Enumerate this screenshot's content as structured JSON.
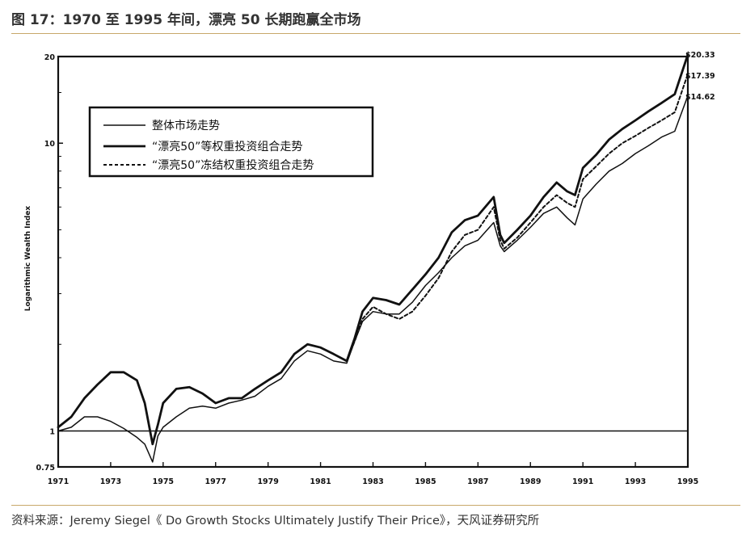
{
  "title": "图 17：1970 至 1995 年间，漂亮 50 长期跑赢全市场",
  "source": "资料来源：Jeremy Siegel《 Do Growth Stocks Ultimately Justify Their Price》，天风证券研究所",
  "colors": {
    "rule": "#c8a86a",
    "line": "#111111",
    "text": "#333333"
  },
  "chart_data": {
    "type": "line",
    "yscale": "log",
    "ylabel": "Logarithmic Wealth Index",
    "ylim": [
      0.75,
      20
    ],
    "xlim": [
      1971,
      1995
    ],
    "yticks": [
      {
        "v": 20,
        "label": "20"
      },
      {
        "v": 10,
        "label": "10"
      },
      {
        "v": 1,
        "label": "1"
      },
      {
        "v": 0.75,
        "label": "0.75"
      }
    ],
    "xticks": [
      "1971",
      "1973",
      "1975",
      "1977",
      "1979",
      "1981",
      "1983",
      "1985",
      "1987",
      "1989",
      "1991",
      "1993",
      "1995"
    ],
    "reference_line": 1,
    "end_labels": [
      "$20.33",
      "$17.39",
      "$14.62"
    ],
    "legend": [
      {
        "label": "整体市场走势",
        "style": "thin"
      },
      {
        "label": "“漂亮50”等权重投资组合走势",
        "style": "thick"
      },
      {
        "label": "“漂亮50”冻结权重投资组合走势",
        "style": "dashed"
      }
    ],
    "series": [
      {
        "name": "整体市场走势",
        "style": "thin",
        "x": [
          1971,
          1971.5,
          1972,
          1972.5,
          1973,
          1973.5,
          1974,
          1974.3,
          1974.6,
          1974.8,
          1975,
          1975.5,
          1976,
          1976.5,
          1977,
          1977.5,
          1978,
          1978.5,
          1979,
          1979.5,
          1980,
          1980.5,
          1981,
          1981.5,
          1982,
          1982.3,
          1982.6,
          1983,
          1983.5,
          1984,
          1984.5,
          1985,
          1985.5,
          1986,
          1986.5,
          1987,
          1987.6,
          1987.85,
          1988,
          1988.5,
          1989,
          1989.5,
          1990,
          1990.4,
          1990.7,
          1991,
          1991.5,
          1992,
          1992.5,
          1993,
          1993.5,
          1994,
          1994.5,
          1995
        ],
        "values": [
          1.0,
          1.03,
          1.12,
          1.12,
          1.08,
          1.02,
          0.95,
          0.9,
          0.78,
          0.96,
          1.03,
          1.12,
          1.2,
          1.22,
          1.2,
          1.25,
          1.28,
          1.32,
          1.43,
          1.52,
          1.75,
          1.9,
          1.85,
          1.75,
          1.72,
          2.05,
          2.4,
          2.6,
          2.55,
          2.55,
          2.8,
          3.2,
          3.55,
          4.0,
          4.4,
          4.6,
          5.3,
          4.4,
          4.2,
          4.6,
          5.1,
          5.7,
          6.0,
          5.5,
          5.2,
          6.4,
          7.2,
          8.0,
          8.5,
          9.2,
          9.8,
          10.5,
          11.0,
          14.62
        ]
      },
      {
        "name": "“漂亮50”等权重投资组合走势",
        "style": "thick",
        "x": [
          1971,
          1971.5,
          1972,
          1972.5,
          1973,
          1973.5,
          1974,
          1974.3,
          1974.6,
          1974.8,
          1975,
          1975.5,
          1976,
          1976.5,
          1977,
          1977.5,
          1978,
          1978.5,
          1979,
          1979.5,
          1980,
          1980.5,
          1981,
          1981.5,
          1982,
          1982.3,
          1982.6,
          1983,
          1983.5,
          1984,
          1984.5,
          1985,
          1985.5,
          1986,
          1986.5,
          1987,
          1987.6,
          1987.85,
          1988,
          1988.5,
          1989,
          1989.5,
          1990,
          1990.4,
          1990.7,
          1991,
          1991.5,
          1992,
          1992.5,
          1993,
          1993.5,
          1994,
          1994.5,
          1995
        ],
        "values": [
          1.03,
          1.12,
          1.3,
          1.45,
          1.6,
          1.6,
          1.5,
          1.25,
          0.9,
          1.05,
          1.25,
          1.4,
          1.42,
          1.35,
          1.25,
          1.3,
          1.3,
          1.4,
          1.5,
          1.6,
          1.85,
          2.0,
          1.95,
          1.85,
          1.75,
          2.1,
          2.6,
          2.9,
          2.85,
          2.75,
          3.1,
          3.5,
          4.0,
          4.9,
          5.4,
          5.6,
          6.5,
          4.8,
          4.5,
          5.0,
          5.6,
          6.5,
          7.3,
          6.8,
          6.6,
          8.2,
          9.1,
          10.3,
          11.2,
          12.0,
          12.9,
          13.8,
          14.8,
          20.33
        ]
      },
      {
        "name": "“漂亮50”冻结权重投资组合走势",
        "style": "dashed",
        "x": [
          1982,
          1982.3,
          1982.6,
          1983,
          1983.5,
          1984,
          1984.5,
          1985,
          1985.5,
          1986,
          1986.5,
          1987,
          1987.6,
          1987.85,
          1988,
          1988.5,
          1989,
          1989.5,
          1990,
          1990.4,
          1990.7,
          1991,
          1991.5,
          1992,
          1992.5,
          1993,
          1993.5,
          1994,
          1994.5,
          1995
        ],
        "values": [
          1.75,
          2.05,
          2.45,
          2.7,
          2.55,
          2.45,
          2.6,
          2.95,
          3.4,
          4.2,
          4.8,
          5.0,
          6.0,
          4.6,
          4.3,
          4.7,
          5.3,
          6.0,
          6.6,
          6.2,
          6.0,
          7.5,
          8.3,
          9.2,
          10.0,
          10.6,
          11.3,
          12.0,
          12.8,
          17.39
        ]
      }
    ]
  }
}
